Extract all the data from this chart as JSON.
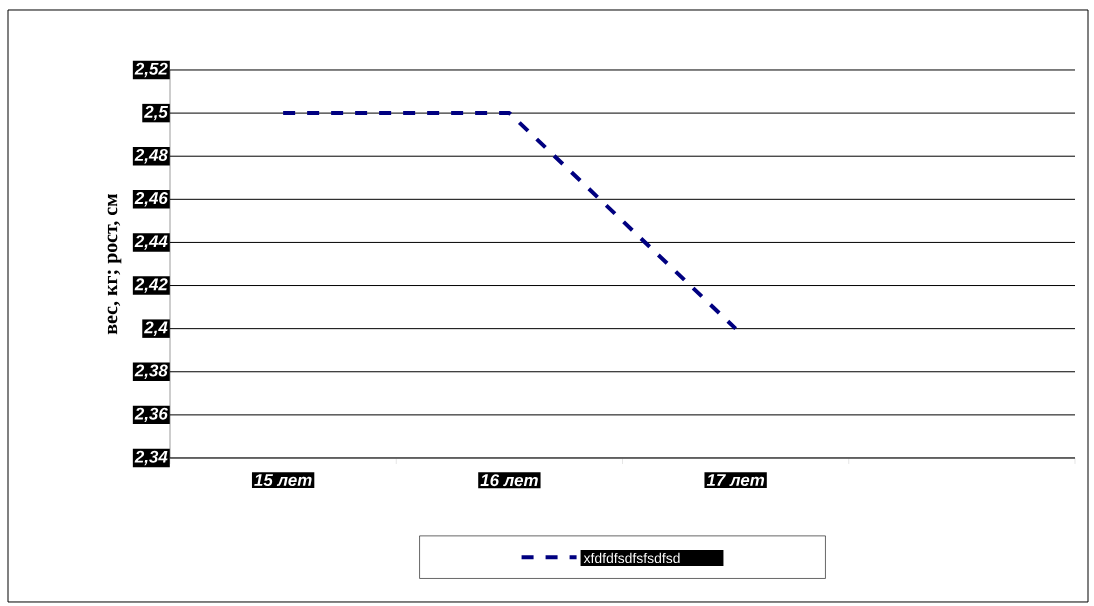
{
  "chart_data": {
    "type": "line",
    "ylabel": "вес, кг; рост, см",
    "categories": [
      "15 лет",
      "16 лет",
      "17 лет",
      null
    ],
    "series": [
      {
        "name": "xfdfdfsdfsfsdfsd",
        "color": "#000080",
        "values": [
          2.5,
          2.5,
          2.4,
          null
        ]
      }
    ],
    "ylim": [
      2.34,
      2.52
    ],
    "yticks": [
      {
        "value": 2.34,
        "label": "2,34"
      },
      {
        "value": 2.36,
        "label": "2,36"
      },
      {
        "value": 2.38,
        "label": "2,38"
      },
      {
        "value": 2.4,
        "label": "2,4"
      },
      {
        "value": 2.42,
        "label": "2,42"
      },
      {
        "value": 2.44,
        "label": "2,44"
      },
      {
        "value": 2.46,
        "label": "2,46"
      },
      {
        "value": 2.48,
        "label": "2,48"
      },
      {
        "value": 2.5,
        "label": "2,5"
      },
      {
        "value": 2.52,
        "label": "2,52"
      }
    ],
    "grid": "y",
    "legend": "bottom",
    "marker": "none",
    "line_style": "dashed"
  }
}
